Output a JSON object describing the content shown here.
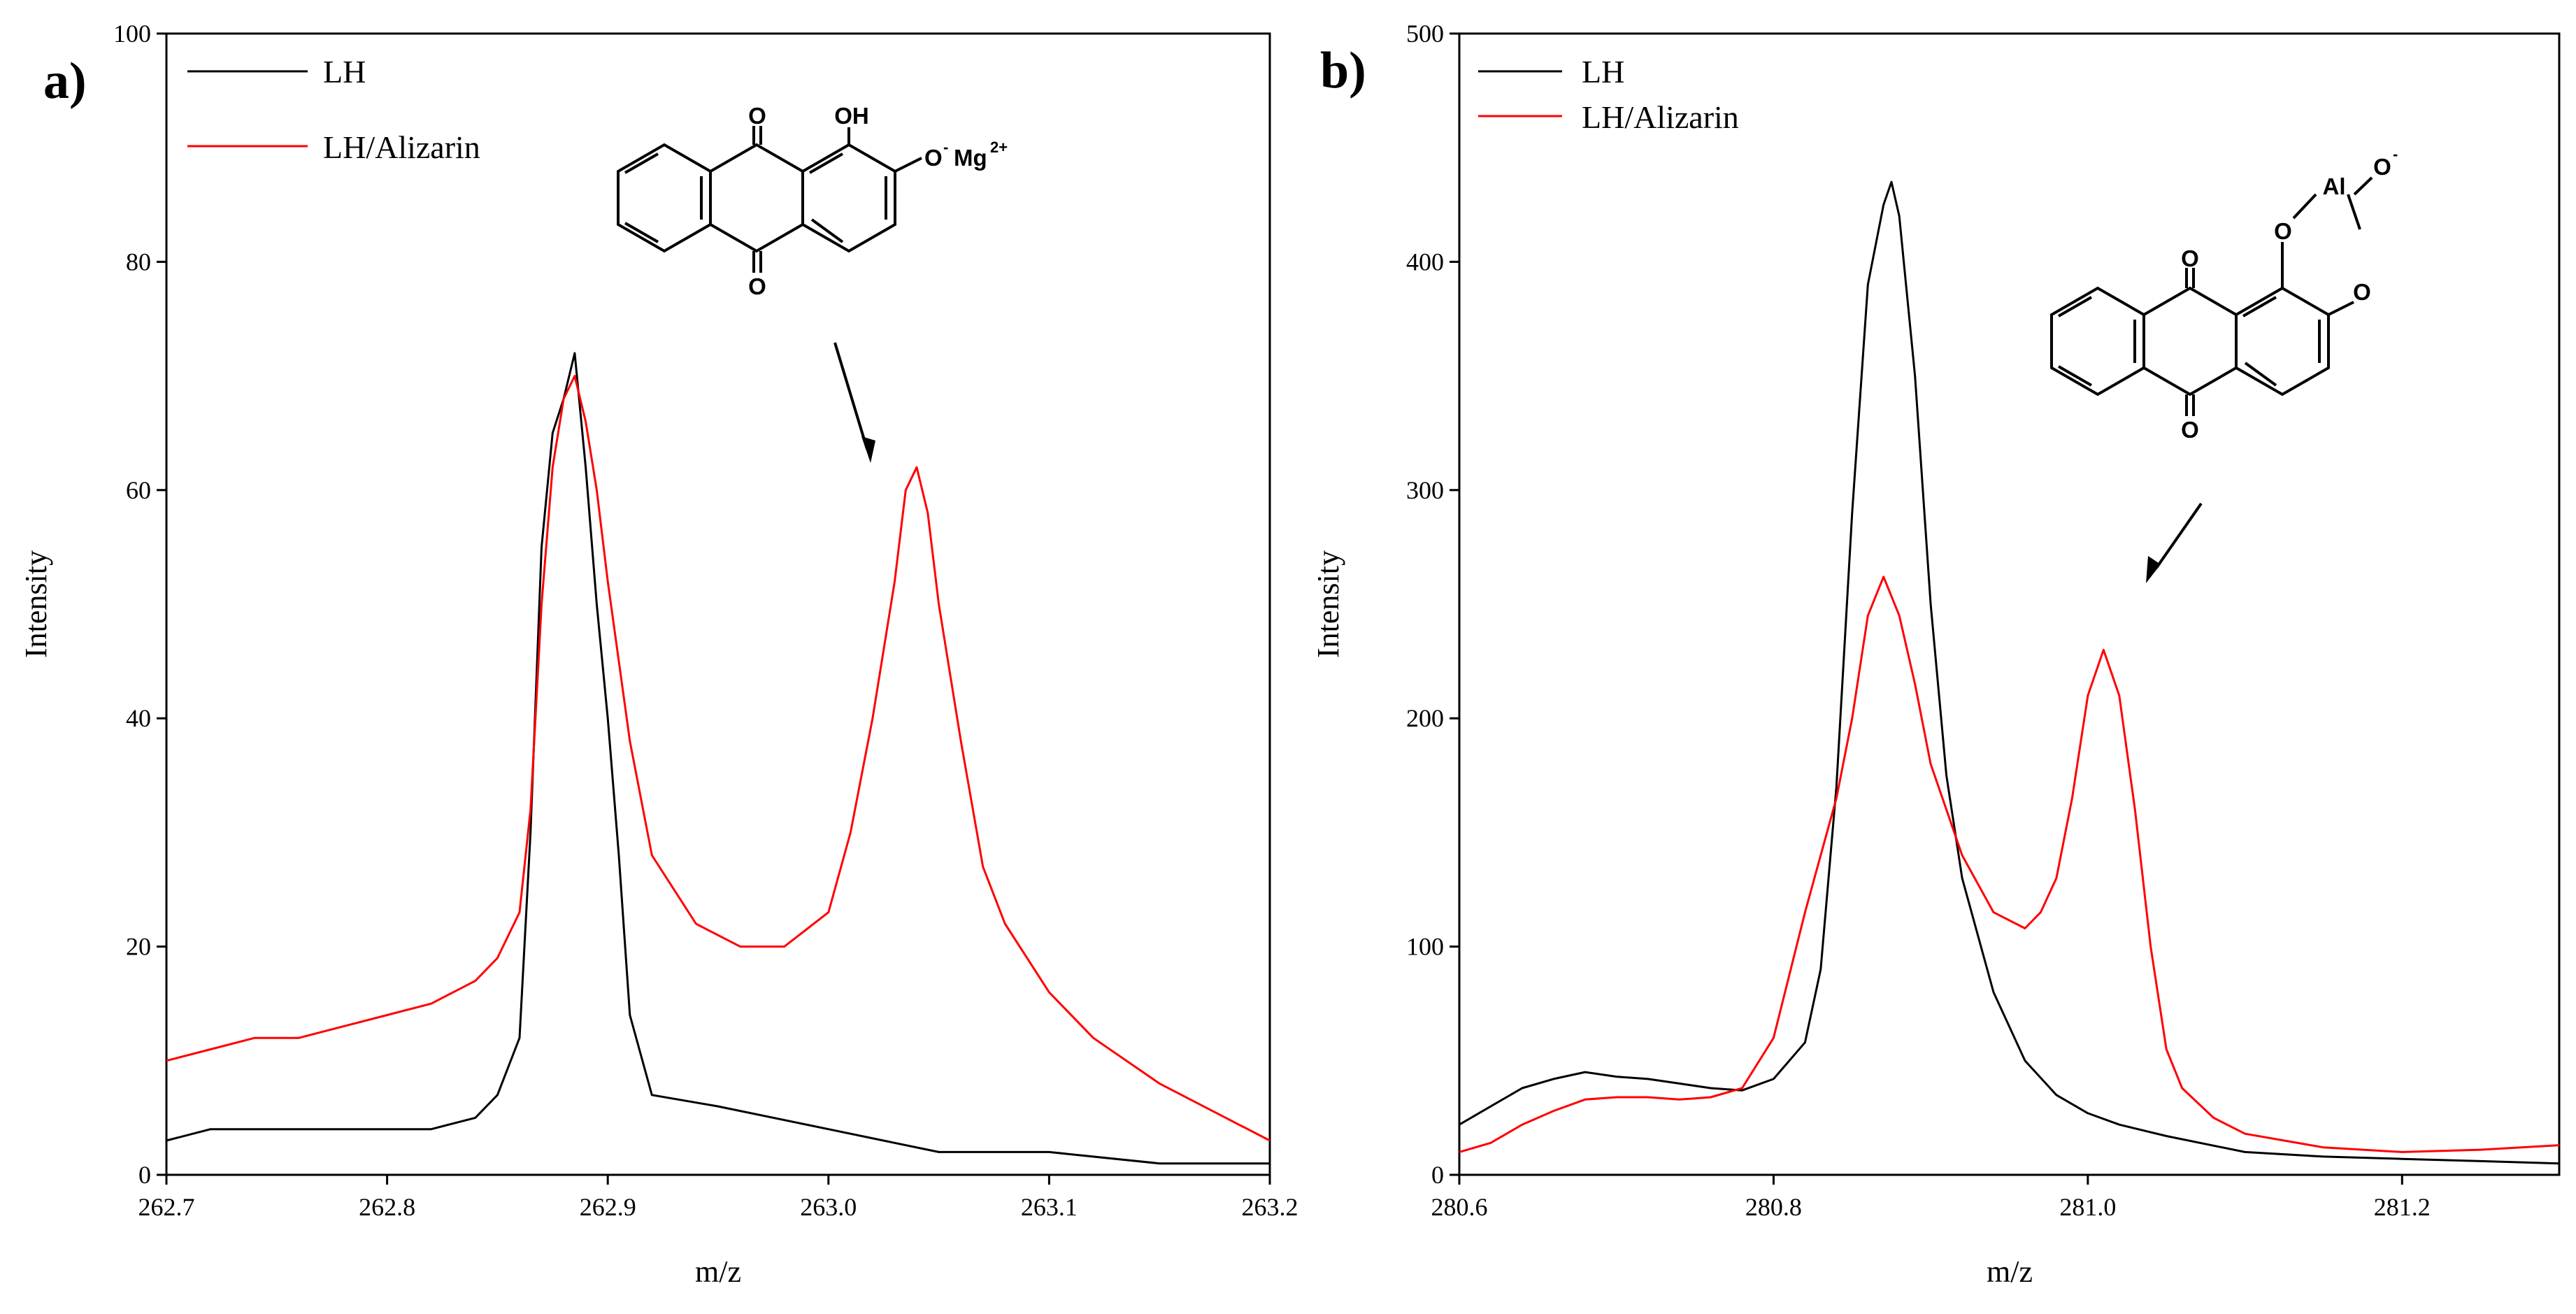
{
  "chart_data": [
    {
      "type": "line",
      "panel_label": "a)",
      "xlabel": "m/z",
      "ylabel": "Intensity",
      "xlim": [
        262.7,
        263.2
      ],
      "ylim": [
        0,
        100
      ],
      "xticks": [
        "262.7",
        "262.8",
        "262.9",
        "263.0",
        "263.1",
        "263.2"
      ],
      "yticks": [
        "0",
        "20",
        "40",
        "60",
        "80",
        "100"
      ],
      "legend_position": "top-left",
      "series": [
        {
          "name": "LH",
          "color": "#000000",
          "x": [
            262.7,
            262.72,
            262.74,
            262.76,
            262.78,
            262.8,
            262.82,
            262.84,
            262.85,
            262.86,
            262.865,
            262.87,
            262.875,
            262.88,
            262.885,
            262.89,
            262.895,
            262.9,
            262.905,
            262.91,
            262.92,
            262.95,
            263.0,
            263.05,
            263.1,
            263.15,
            263.2
          ],
          "values": [
            3,
            4,
            4,
            4,
            4,
            4,
            4,
            5,
            7,
            12,
            30,
            55,
            65,
            68,
            72,
            62,
            50,
            40,
            28,
            14,
            7,
            6,
            4,
            2,
            2,
            1,
            1
          ]
        },
        {
          "name": "LH/Alizarin",
          "color": "#ff0000",
          "x": [
            262.7,
            262.72,
            262.74,
            262.76,
            262.78,
            262.8,
            262.82,
            262.84,
            262.85,
            262.86,
            262.865,
            262.87,
            262.875,
            262.88,
            262.885,
            262.89,
            262.895,
            262.9,
            262.91,
            262.92,
            262.94,
            262.96,
            262.98,
            263.0,
            263.01,
            263.02,
            263.03,
            263.035,
            263.04,
            263.045,
            263.05,
            263.06,
            263.07,
            263.08,
            263.1,
            263.12,
            263.15,
            263.18,
            263.2
          ],
          "values": [
            10,
            11,
            12,
            12,
            13,
            14,
            15,
            17,
            19,
            23,
            32,
            50,
            62,
            68,
            70,
            66,
            60,
            52,
            38,
            28,
            22,
            20,
            20,
            23,
            30,
            40,
            52,
            60,
            62,
            58,
            50,
            38,
            27,
            22,
            16,
            12,
            8,
            5,
            3
          ]
        }
      ],
      "annotation": {
        "labels": {
          "o_top": "O",
          "oh": "OH",
          "o_bottom": "O",
          "o_minus": "O",
          "o_minus_sup": "-",
          "mg": "Mg",
          "mg_sup": "2+"
        }
      }
    },
    {
      "type": "line",
      "panel_label": "b)",
      "xlabel": "m/z",
      "ylabel": "Intensity",
      "xlim": [
        280.6,
        281.3
      ],
      "ylim": [
        0,
        500
      ],
      "xticks": [
        "280.6",
        "280.8",
        "281.0",
        "281.2"
      ],
      "yticks": [
        "0",
        "100",
        "200",
        "300",
        "400",
        "500"
      ],
      "legend_position": "top-left",
      "series": [
        {
          "name": "LH",
          "color": "#000000",
          "x": [
            280.6,
            280.62,
            280.64,
            280.66,
            280.68,
            280.7,
            280.72,
            280.74,
            280.76,
            280.78,
            280.8,
            280.82,
            280.83,
            280.84,
            280.85,
            280.86,
            280.87,
            280.875,
            280.88,
            280.89,
            280.9,
            280.91,
            280.92,
            280.94,
            280.96,
            280.98,
            281.0,
            281.02,
            281.05,
            281.1,
            281.15,
            281.2,
            281.25,
            281.3
          ],
          "values": [
            22,
            30,
            38,
            42,
            45,
            43,
            42,
            40,
            38,
            37,
            42,
            58,
            90,
            170,
            290,
            390,
            425,
            435,
            420,
            350,
            250,
            175,
            130,
            80,
            50,
            35,
            27,
            22,
            17,
            10,
            8,
            7,
            6,
            5
          ]
        },
        {
          "name": "LH/Alizarin",
          "color": "#ff0000",
          "x": [
            280.6,
            280.62,
            280.64,
            280.66,
            280.68,
            280.7,
            280.72,
            280.74,
            280.76,
            280.78,
            280.8,
            280.82,
            280.84,
            280.85,
            280.86,
            280.87,
            280.88,
            280.89,
            280.9,
            280.92,
            280.94,
            280.96,
            280.97,
            280.98,
            280.99,
            281.0,
            281.01,
            281.02,
            281.03,
            281.04,
            281.05,
            281.06,
            281.08,
            281.1,
            281.15,
            281.2,
            281.25,
            281.3
          ],
          "values": [
            10,
            14,
            22,
            28,
            33,
            34,
            34,
            33,
            34,
            38,
            60,
            115,
            165,
            200,
            245,
            262,
            245,
            215,
            180,
            140,
            115,
            108,
            115,
            130,
            165,
            210,
            230,
            210,
            160,
            100,
            55,
            38,
            25,
            18,
            12,
            10,
            11,
            13
          ]
        }
      ],
      "annotation": {
        "labels": {
          "o_top": "O",
          "o_bottom": "O",
          "o1": "O",
          "o2": "O",
          "al": "Al",
          "o_minus": "O",
          "o_minus_sup": "-"
        }
      }
    }
  ]
}
